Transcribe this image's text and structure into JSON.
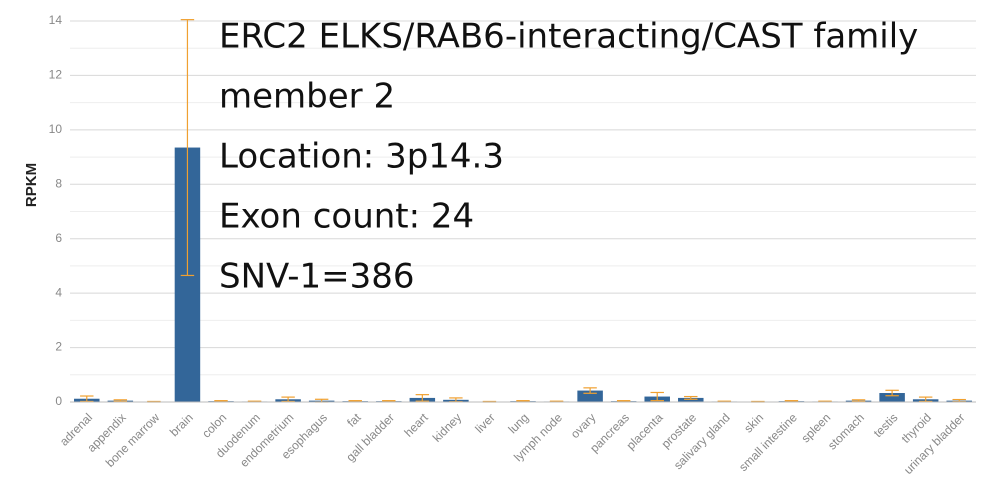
{
  "chart_data": {
    "type": "bar",
    "ylabel": "RPKM",
    "annotations": [
      "ERC2 ELKS/RAB6-interacting/CAST family",
      "member 2",
      "Location: 3p14.3",
      "Exon count: 24",
      "SNV-1=386"
    ],
    "categories": [
      "adrenal",
      "appendix",
      "bone marrow",
      "brain",
      "colon",
      "duodenum",
      "endometrium",
      "esophagus",
      "fat",
      "gall bladder",
      "heart",
      "kidney",
      "liver",
      "lung",
      "lymph node",
      "ovary",
      "pancreas",
      "placenta",
      "prostate",
      "salivary gland",
      "skin",
      "small intestine",
      "spleen",
      "stomach",
      "testis",
      "thyroid",
      "urinary bladder"
    ],
    "values": [
      0.12,
      0.05,
      0.01,
      9.35,
      0.03,
      0.02,
      0.1,
      0.05,
      0.03,
      0.03,
      0.15,
      0.08,
      0.01,
      0.03,
      0.02,
      0.42,
      0.03,
      0.2,
      0.15,
      0.02,
      0.01,
      0.03,
      0.02,
      0.05,
      0.33,
      0.1,
      0.05
    ],
    "errors": [
      0.1,
      0.03,
      0.01,
      4.7,
      0.02,
      0.01,
      0.08,
      0.05,
      0.02,
      0.02,
      0.12,
      0.07,
      0.01,
      0.02,
      0.01,
      0.1,
      0.02,
      0.15,
      0.05,
      0.01,
      0.01,
      0.02,
      0.01,
      0.03,
      0.1,
      0.08,
      0.04
    ],
    "color": "#336699",
    "error_color": "#f0a030",
    "ylim": [
      0,
      14
    ],
    "yticks": [
      0,
      2,
      4,
      6,
      8,
      10,
      12,
      14
    ],
    "minor_yticks": [
      1,
      3,
      5,
      7,
      9,
      11,
      13
    ],
    "grid": true
  }
}
